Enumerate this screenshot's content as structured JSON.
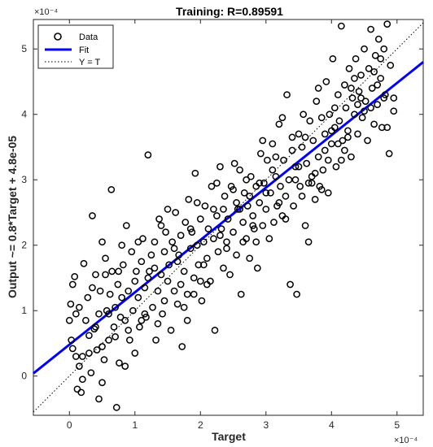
{
  "chart_data": {
    "type": "scatter",
    "title": "Training: R=0.89591",
    "xlabel": "Target",
    "ylabel": "Output ~= 0.8*Target + 4.8e-05",
    "x_exponent_label": "×10⁻⁴",
    "y_exponent_label": "×10⁻⁴",
    "scale": 0.0001,
    "xlim": [
      -0.55,
      5.4
    ],
    "ylim": [
      -0.6,
      5.45
    ],
    "x_ticks": [
      0,
      1,
      2,
      3,
      4,
      5
    ],
    "y_ticks": [
      0,
      1,
      2,
      3,
      4,
      5
    ],
    "grid": false,
    "legend_position": "top-left",
    "legend": [
      {
        "label": "Data",
        "style": "circle",
        "color": "#000000"
      },
      {
        "label": "Fit",
        "style": "line",
        "color": "#0000ff"
      },
      {
        "label": "Y = T",
        "style": "dotted",
        "color": "#000000"
      }
    ],
    "fit": {
      "slope": 0.8,
      "intercept": 0.48,
      "color": "#0000ff"
    },
    "identity": {
      "slope": 1,
      "intercept": 0
    },
    "series": [
      {
        "name": "Data",
        "points": [
          [
            0.02,
            1.1
          ],
          [
            0.03,
            0.55
          ],
          [
            0.05,
            1.4
          ],
          [
            0.08,
            1.52
          ],
          [
            0.1,
            0.95
          ],
          [
            0.12,
            -0.2
          ],
          [
            0.05,
            0.42
          ],
          [
            0.15,
            0.15
          ],
          [
            0.18,
            -0.25
          ],
          [
            0.2,
            0.3
          ],
          [
            0.25,
            0.85
          ],
          [
            0.28,
            1.2
          ],
          [
            0.3,
            0.62
          ],
          [
            0.22,
            1.72
          ],
          [
            0.33,
            0.05
          ],
          [
            0.35,
            1.35
          ],
          [
            0.38,
            0.72
          ],
          [
            0.4,
            1.55
          ],
          [
            0.42,
            0.4
          ],
          [
            0.45,
            0.95
          ],
          [
            0.47,
            1.3
          ],
          [
            0.5,
            2.05
          ],
          [
            0.5,
            -0.1
          ],
          [
            0.53,
            0.25
          ],
          [
            0.55,
            1.8
          ],
          [
            0.57,
            1.0
          ],
          [
            0.6,
            0.55
          ],
          [
            0.62,
            1.25
          ],
          [
            0.64,
            2.85
          ],
          [
            0.65,
            1.6
          ],
          [
            0.68,
            0.75
          ],
          [
            0.7,
            1.05
          ],
          [
            0.72,
            -0.48
          ],
          [
            0.74,
            1.4
          ],
          [
            0.76,
            0.2
          ],
          [
            0.78,
            0.9
          ],
          [
            0.8,
            1.2
          ],
          [
            0.82,
            1.7
          ],
          [
            0.85,
            0.85
          ],
          [
            0.87,
            2.3
          ],
          [
            0.9,
            1.3
          ],
          [
            0.92,
            0.55
          ],
          [
            0.95,
            1.9
          ],
          [
            0.97,
            1.0
          ],
          [
            1.0,
            0.35
          ],
          [
            1.02,
            1.6
          ],
          [
            1.05,
            1.2
          ],
          [
            1.07,
            0.75
          ],
          [
            1.1,
            1.75
          ],
          [
            1.12,
            2.1
          ],
          [
            1.15,
            1.35
          ],
          [
            1.17,
            0.9
          ],
          [
            1.2,
            3.38
          ],
          [
            1.22,
            1.6
          ],
          [
            1.25,
            1.85
          ],
          [
            1.27,
            1.05
          ],
          [
            1.3,
            2.05
          ],
          [
            1.32,
            0.55
          ],
          [
            1.35,
            1.3
          ],
          [
            1.37,
            2.4
          ],
          [
            1.4,
            1.55
          ],
          [
            1.42,
            0.95
          ],
          [
            1.45,
            1.9
          ],
          [
            1.47,
            2.2
          ],
          [
            1.5,
            1.45
          ],
          [
            1.52,
            1.7
          ],
          [
            1.55,
            0.7
          ],
          [
            1.57,
            2.05
          ],
          [
            1.6,
            1.3
          ],
          [
            1.62,
            2.5
          ],
          [
            1.65,
            1.1
          ],
          [
            1.67,
            1.85
          ],
          [
            1.7,
            2.15
          ],
          [
            1.72,
            0.45
          ],
          [
            1.75,
            1.6
          ],
          [
            1.77,
            2.35
          ],
          [
            1.8,
            1.25
          ],
          [
            1.82,
            2.7
          ],
          [
            1.85,
            1.95
          ],
          [
            1.87,
            2.2
          ],
          [
            1.9,
            1.5
          ],
          [
            1.92,
            3.1
          ],
          [
            1.95,
            2.0
          ],
          [
            1.97,
            1.7
          ],
          [
            2.0,
            2.4
          ],
          [
            2.02,
            1.15
          ],
          [
            2.05,
            2.05
          ],
          [
            2.07,
            2.6
          ],
          [
            2.1,
            1.8
          ],
          [
            2.12,
            2.25
          ],
          [
            2.15,
            1.45
          ],
          [
            2.17,
            2.9
          ],
          [
            2.2,
            2.1
          ],
          [
            2.22,
            0.7
          ],
          [
            2.25,
            2.45
          ],
          [
            2.27,
            1.9
          ],
          [
            2.3,
            3.2
          ],
          [
            2.32,
            2.25
          ],
          [
            2.35,
            1.65
          ],
          [
            2.37,
            2.75
          ],
          [
            2.4,
            2.05
          ],
          [
            2.42,
            2.4
          ],
          [
            2.45,
            1.55
          ],
          [
            2.47,
            2.9
          ],
          [
            2.5,
            2.2
          ],
          [
            2.52,
            3.25
          ],
          [
            2.55,
            1.85
          ],
          [
            2.57,
            2.55
          ],
          [
            2.6,
            3.15
          ],
          [
            2.62,
            1.25
          ],
          [
            2.65,
            2.35
          ],
          [
            2.67,
            2.8
          ],
          [
            2.7,
            2.1
          ],
          [
            2.72,
            2.6
          ],
          [
            2.75,
            1.8
          ],
          [
            2.77,
            3.05
          ],
          [
            2.8,
            2.45
          ],
          [
            2.82,
            2.25
          ],
          [
            2.85,
            2.9
          ],
          [
            2.87,
            1.65
          ],
          [
            2.9,
            2.65
          ],
          [
            2.92,
            3.4
          ],
          [
            2.95,
            2.3
          ],
          [
            2.97,
            2.95
          ],
          [
            3.0,
            2.55
          ],
          [
            3.02,
            3.3
          ],
          [
            3.05,
            2.1
          ],
          [
            3.07,
            2.8
          ],
          [
            3.1,
            3.55
          ],
          [
            3.12,
            2.35
          ],
          [
            3.15,
            3.05
          ],
          [
            3.17,
            2.6
          ],
          [
            3.2,
            3.85
          ],
          [
            3.22,
            2.9
          ],
          [
            3.25,
            2.45
          ],
          [
            3.27,
            3.3
          ],
          [
            3.3,
            2.75
          ],
          [
            3.32,
            4.3
          ],
          [
            3.35,
            3.0
          ],
          [
            3.37,
            1.4
          ],
          [
            3.4,
            3.45
          ],
          [
            3.42,
            2.6
          ],
          [
            3.45,
            3.2
          ],
          [
            3.47,
            1.25
          ],
          [
            3.5,
            3.7
          ],
          [
            3.52,
            2.9
          ],
          [
            3.55,
            3.5
          ],
          [
            3.57,
            4.0
          ],
          [
            3.6,
            2.3
          ],
          [
            3.62,
            3.25
          ],
          [
            3.65,
            2.05
          ],
          [
            3.67,
            3.9
          ],
          [
            3.7,
            3.05
          ],
          [
            3.72,
            3.6
          ],
          [
            3.75,
            2.7
          ],
          [
            3.77,
            4.2
          ],
          [
            3.8,
            3.35
          ],
          [
            3.82,
            2.9
          ],
          [
            3.85,
            3.95
          ],
          [
            3.87,
            3.15
          ],
          [
            3.9,
            3.7
          ],
          [
            3.92,
            4.5
          ],
          [
            3.95,
            3.3
          ],
          [
            3.97,
            4.0
          ],
          [
            4.0,
            3.55
          ],
          [
            4.02,
            4.85
          ],
          [
            4.05,
            3.8
          ],
          [
            4.07,
            3.2
          ],
          [
            4.1,
            4.3
          ],
          [
            4.12,
            3.9
          ],
          [
            4.15,
            5.35
          ],
          [
            4.17,
            3.6
          ],
          [
            4.2,
            4.45
          ],
          [
            4.22,
            4.1
          ],
          [
            4.25,
            3.75
          ],
          [
            4.27,
            4.7
          ],
          [
            4.3,
            3.35
          ],
          [
            4.32,
            4.25
          ],
          [
            4.35,
            4.0
          ],
          [
            4.37,
            4.85
          ],
          [
            4.4,
            3.7
          ],
          [
            4.42,
            4.35
          ],
          [
            4.45,
            4.6
          ],
          [
            4.47,
            3.95
          ],
          [
            4.5,
            5.0
          ],
          [
            4.52,
            4.2
          ],
          [
            4.55,
            3.6
          ],
          [
            4.57,
            4.7
          ],
          [
            4.6,
            5.3
          ],
          [
            4.62,
            4.4
          ],
          [
            4.65,
            3.85
          ],
          [
            4.67,
            4.9
          ],
          [
            4.7,
            4.15
          ],
          [
            4.72,
            5.15
          ],
          [
            4.75,
            4.55
          ],
          [
            4.77,
            3.8
          ],
          [
            4.8,
            5.0
          ],
          [
            4.82,
            4.3
          ],
          [
            4.85,
            5.38
          ],
          [
            4.88,
            3.4
          ],
          [
            0.0,
            0.85
          ],
          [
            0.15,
            1.05
          ],
          [
            0.3,
            0.35
          ],
          [
            0.45,
            -0.35
          ],
          [
            0.6,
            0.95
          ],
          [
            0.75,
            1.6
          ],
          [
            0.9,
            0.7
          ],
          [
            1.05,
            2.05
          ],
          [
            1.2,
            1.5
          ],
          [
            1.35,
            0.8
          ],
          [
            1.5,
            2.55
          ],
          [
            1.65,
            1.75
          ],
          [
            1.8,
            0.85
          ],
          [
            1.95,
            2.65
          ],
          [
            2.1,
            1.4
          ],
          [
            2.25,
            2.95
          ],
          [
            2.4,
            1.95
          ],
          [
            2.55,
            2.65
          ],
          [
            2.7,
            3.0
          ],
          [
            2.85,
            2.05
          ],
          [
            3.0,
            2.8
          ],
          [
            3.15,
            3.35
          ],
          [
            3.3,
            2.4
          ],
          [
            3.45,
            3.0
          ],
          [
            3.6,
            3.65
          ],
          [
            3.75,
            3.1
          ],
          [
            3.9,
            3.45
          ],
          [
            4.05,
            4.1
          ],
          [
            4.2,
            3.45
          ],
          [
            4.35,
            4.55
          ],
          [
            4.5,
            4.05
          ],
          [
            4.65,
            4.65
          ],
          [
            4.8,
            4.25
          ],
          [
            0.1,
            0.3
          ],
          [
            0.4,
            0.75
          ],
          [
            0.7,
            0.6
          ],
          [
            1.0,
            1.45
          ],
          [
            1.3,
            1.65
          ],
          [
            1.6,
            1.95
          ],
          [
            1.9,
            1.25
          ],
          [
            2.2,
            2.55
          ],
          [
            2.5,
            2.85
          ],
          [
            2.8,
            2.3
          ],
          [
            3.1,
            3.15
          ],
          [
            3.4,
            3.65
          ],
          [
            3.7,
            2.95
          ],
          [
            4.0,
            3.75
          ],
          [
            4.3,
            4.4
          ],
          [
            4.6,
            4.1
          ],
          [
            4.9,
            4.75
          ],
          [
            0.35,
            2.45
          ],
          [
            0.55,
            1.55
          ],
          [
            0.85,
            0.15
          ],
          [
            1.15,
            0.95
          ],
          [
            1.45,
            1.15
          ],
          [
            1.75,
            1.05
          ],
          [
            2.05,
            1.7
          ],
          [
            2.35,
            2.55
          ],
          [
            2.65,
            2.05
          ],
          [
            2.95,
            3.6
          ],
          [
            3.25,
            3.95
          ],
          [
            3.55,
            2.75
          ],
          [
            3.85,
            2.85
          ],
          [
            4.15,
            3.3
          ],
          [
            4.45,
            4.25
          ],
          [
            4.75,
            4.85
          ],
          [
            0.2,
            -0.05
          ],
          [
            0.5,
            0.45
          ],
          [
            0.8,
            2.0
          ],
          [
            1.1,
            0.85
          ],
          [
            1.4,
            2.3
          ],
          [
            1.7,
            1.4
          ],
          [
            2.0,
            1.45
          ],
          [
            2.3,
            2.15
          ],
          [
            2.6,
            2.55
          ],
          [
            2.9,
            2.95
          ],
          [
            3.2,
            2.65
          ],
          [
            3.5,
            3.2
          ],
          [
            3.8,
            4.4
          ],
          [
            4.1,
            3.55
          ],
          [
            4.4,
            4.15
          ],
          [
            4.7,
            4.45
          ],
          [
            4.95,
            4.25
          ],
          [
            4.85,
            3.8
          ],
          [
            4.95,
            4.05
          ],
          [
            3.95,
            2.8
          ],
          [
            4.25,
            3.65
          ],
          [
            3.65,
            2.95
          ],
          [
            2.75,
            2.75
          ],
          [
            1.85,
            2.25
          ]
        ]
      }
    ]
  }
}
